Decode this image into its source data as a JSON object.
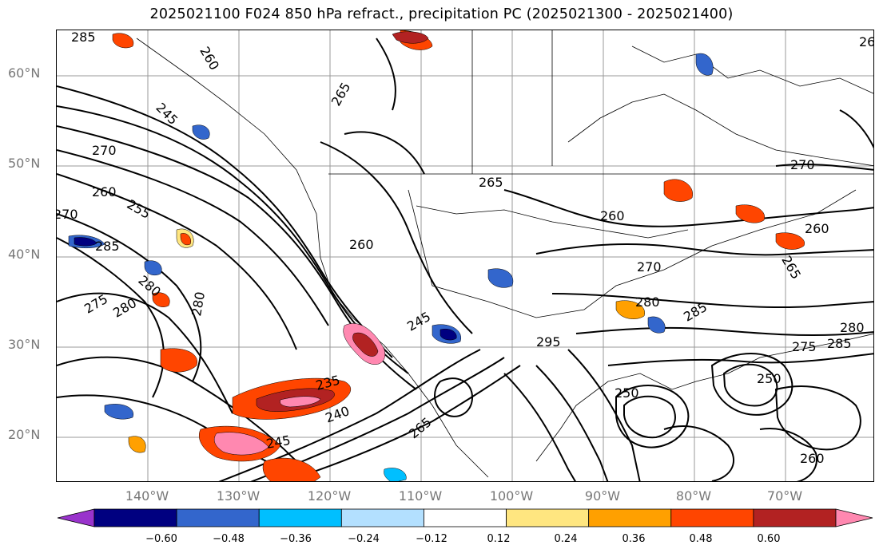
{
  "title": "2025021100 F024 850 hPa refract., precipitation PC (2025021300 - 2025021400)",
  "latitude_labels": [
    "60°N",
    "50°N",
    "40°N",
    "30°N",
    "20°N"
  ],
  "longitude_labels": [
    "140°W",
    "130°W",
    "120°W",
    "110°W",
    "100°W",
    "90°W",
    "80°W",
    "70°W"
  ],
  "colorbar": {
    "tick_labels": [
      "−0.60",
      "−0.48",
      "−0.36",
      "−0.24",
      "−0.12",
      "0.12",
      "0.24",
      "0.36",
      "0.48",
      "0.60"
    ],
    "colors": [
      "#9933cc",
      "#000080",
      "#3366cc",
      "#00bfff",
      "#b3e0ff",
      "#ffffff",
      "#ffe680",
      "#ffa000",
      "#ff4500",
      "#b22222",
      "#ff88b0"
    ]
  },
  "contour_labels": [
    "285",
    "260",
    "265",
    "26",
    "270",
    "245",
    "260",
    "255",
    "270",
    "265",
    "270",
    "285",
    "260",
    "280",
    "260",
    "275",
    "280",
    "280",
    "260",
    "270",
    "265",
    "280",
    "285",
    "280",
    "275",
    "285",
    "295",
    "245",
    "235",
    "240",
    "245",
    "265",
    "250",
    "260",
    "250"
  ],
  "overlays": {
    "coastlines_and_borders": true,
    "gridlines": true,
    "refractivity_contours": true,
    "precipitation_pc_shading": true
  }
}
